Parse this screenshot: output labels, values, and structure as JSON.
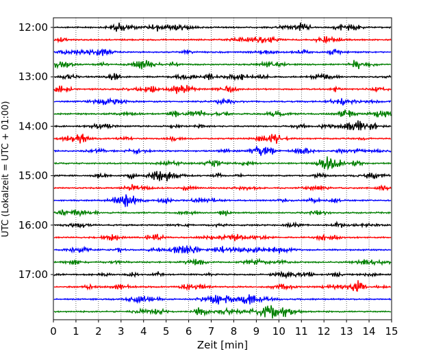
{
  "chart_data": {
    "type": "line",
    "subtype": "helicorder",
    "xlabel": "Zeit  [min]",
    "ylabel": "UTC (Lokalzeit = UTC + 01:00)",
    "xlim": [
      0,
      15
    ],
    "x_ticks": [
      "0",
      "1",
      "2",
      "3",
      "4",
      "5",
      "6",
      "7",
      "8",
      "9",
      "10",
      "11",
      "12",
      "13",
      "14",
      "15"
    ],
    "row_interval_minutes": 15,
    "rows": [
      "12:00",
      "12:15",
      "12:30",
      "12:45",
      "13:00",
      "13:15",
      "13:30",
      "13:45",
      "14:00",
      "14:15",
      "14:30",
      "14:45",
      "15:00",
      "15:15",
      "15:30",
      "15:45",
      "16:00",
      "16:15",
      "16:30",
      "16:45",
      "17:00",
      "17:15",
      "17:30",
      "17:45"
    ],
    "y_tick_labels": [
      "12:00",
      "13:00",
      "14:00",
      "15:00",
      "16:00",
      "17:00"
    ],
    "trace_colors": [
      "#000000",
      "#ff0000",
      "#0000ff",
      "#007f00"
    ],
    "grid": "vertical-dotted"
  }
}
